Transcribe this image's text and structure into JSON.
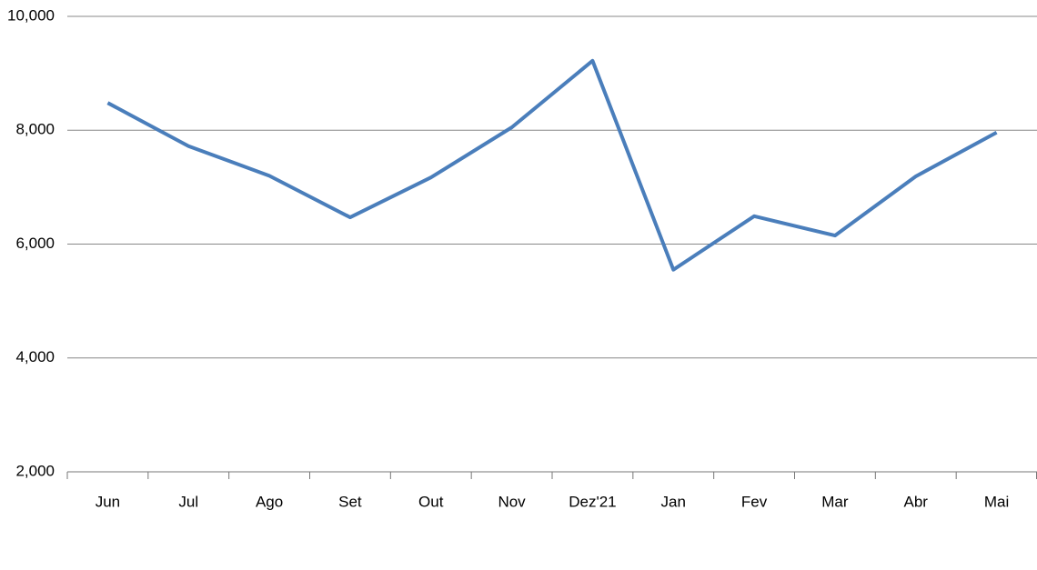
{
  "chart_data": {
    "type": "line",
    "categories": [
      "Jun",
      "Jul",
      "Ago",
      "Set",
      "Out",
      "Nov",
      "Dez'21",
      "Jan",
      "Fev",
      "Mar",
      "Abr",
      "Mai"
    ],
    "series": [
      {
        "color": "#4a7ebb",
        "values": [
          8480,
          7720,
          7200,
          6470,
          7170,
          8050,
          9220,
          5550,
          6490,
          6150,
          7190,
          7960
        ]
      }
    ],
    "ylim": [
      2000,
      10000
    ],
    "yticks": [
      {
        "value": 2000,
        "label": "2,000"
      },
      {
        "value": 4000,
        "label": "4,000"
      },
      {
        "value": 6000,
        "label": "6,000"
      },
      {
        "value": 8000,
        "label": "8,000"
      },
      {
        "value": 10000,
        "label": "10,000"
      }
    ],
    "grid": true
  }
}
